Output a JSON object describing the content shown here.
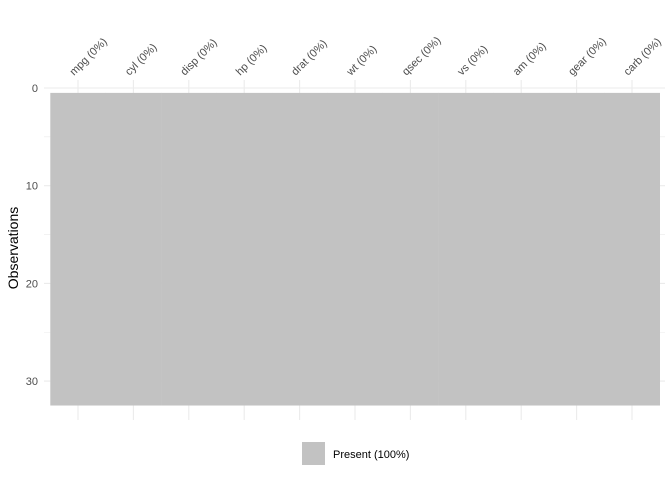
{
  "chart_data": {
    "type": "heatmap",
    "title": "",
    "xlabel": "",
    "ylabel": "Observations",
    "categories": [
      "mpg (0%)",
      "cyl (0%)",
      "disp (0%)",
      "hp (0%)",
      "drat (0%)",
      "wt (0%)",
      "qsec (0%)",
      "vs (0%)",
      "am (0%)",
      "gear (0%)",
      "carb (0%)"
    ],
    "n_observations": 32,
    "missing_percent": [
      0,
      0,
      0,
      0,
      0,
      0,
      0,
      0,
      0,
      0,
      0
    ],
    "y_ticks": [
      0,
      10,
      20,
      30
    ],
    "ylim": [
      0,
      32.5
    ],
    "y_reversed": true,
    "x_axis_position": "top",
    "grid": true,
    "legend": {
      "position": "bottom",
      "entries": [
        {
          "label": "Present (100%)",
          "color": "#c2c2c2"
        }
      ]
    },
    "colors": {
      "present": "#c2c2c2",
      "grid": "#ebebeb"
    }
  }
}
